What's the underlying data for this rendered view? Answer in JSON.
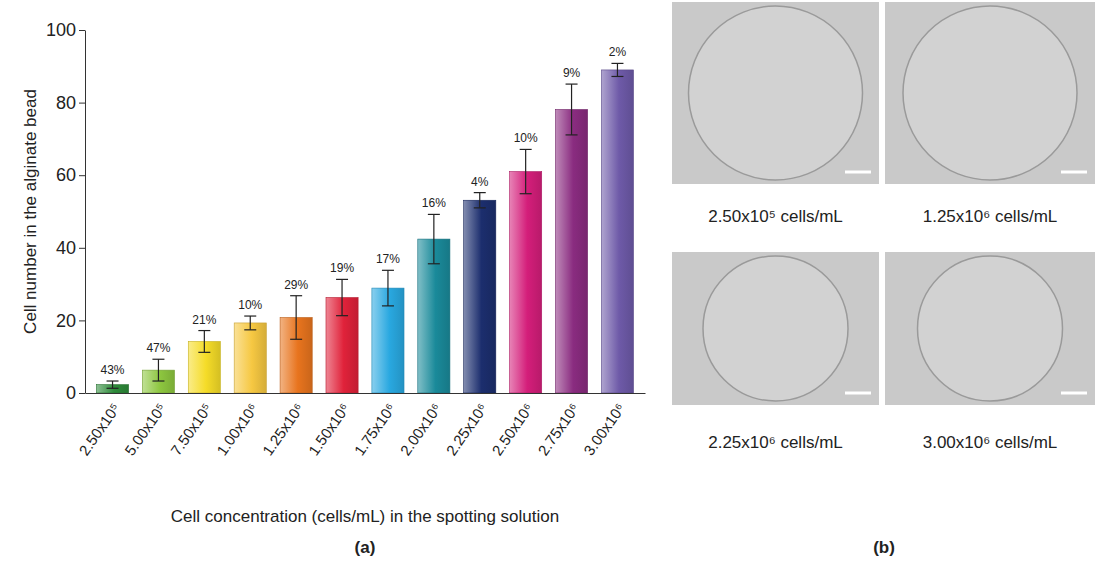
{
  "chart_data": {
    "type": "bar",
    "caption": "(a)",
    "x_label": "Cell concentration (cells/mL) in the spotting solution",
    "y_label": "Cell number in the alginate bead",
    "categories": [
      "2.50x10⁵",
      "5.00x10⁵",
      "7.50x10⁵",
      "1.00x10⁶",
      "1.25x10⁶",
      "1.50x10⁶",
      "1.75x10⁶",
      "2.00x10⁶",
      "2.25x10⁶",
      "2.50x10⁶",
      "2.75x10⁶",
      "3.00x10⁶"
    ],
    "values": [
      2.3,
      6.3,
      14.2,
      19.3,
      20.8,
      26.3,
      28.9,
      42.4,
      53.1,
      61.0,
      78.1,
      89.0
    ],
    "errors": [
      1.0,
      3.0,
      3.0,
      1.9,
      6.0,
      5.0,
      4.9,
      6.8,
      2.1,
      6.1,
      7.0,
      1.8
    ],
    "cv_labels": [
      "43%",
      "47%",
      "21%",
      "10%",
      "29%",
      "19%",
      "17%",
      "16%",
      "4%",
      "10%",
      "9%",
      "2%"
    ],
    "colors": [
      "#2e8b3a",
      "#8dc63f",
      "#f5dc28",
      "#f6c842",
      "#e8741e",
      "#e0223a",
      "#29a8e0",
      "#1a8a9a",
      "#1c2e6e",
      "#d41e7a",
      "#8a2c80",
      "#6e5aa8"
    ],
    "ylim": [
      0,
      100
    ],
    "yticks": [
      0,
      20,
      40,
      60,
      80,
      100
    ],
    "grid": false
  },
  "images": {
    "label": "(b)",
    "captions": [
      "2.50x10⁵ cells/mL",
      "1.25x10⁶ cells/mL",
      "2.25x10⁶ cells/mL",
      "3.00x10⁶ cells/mL"
    ]
  }
}
